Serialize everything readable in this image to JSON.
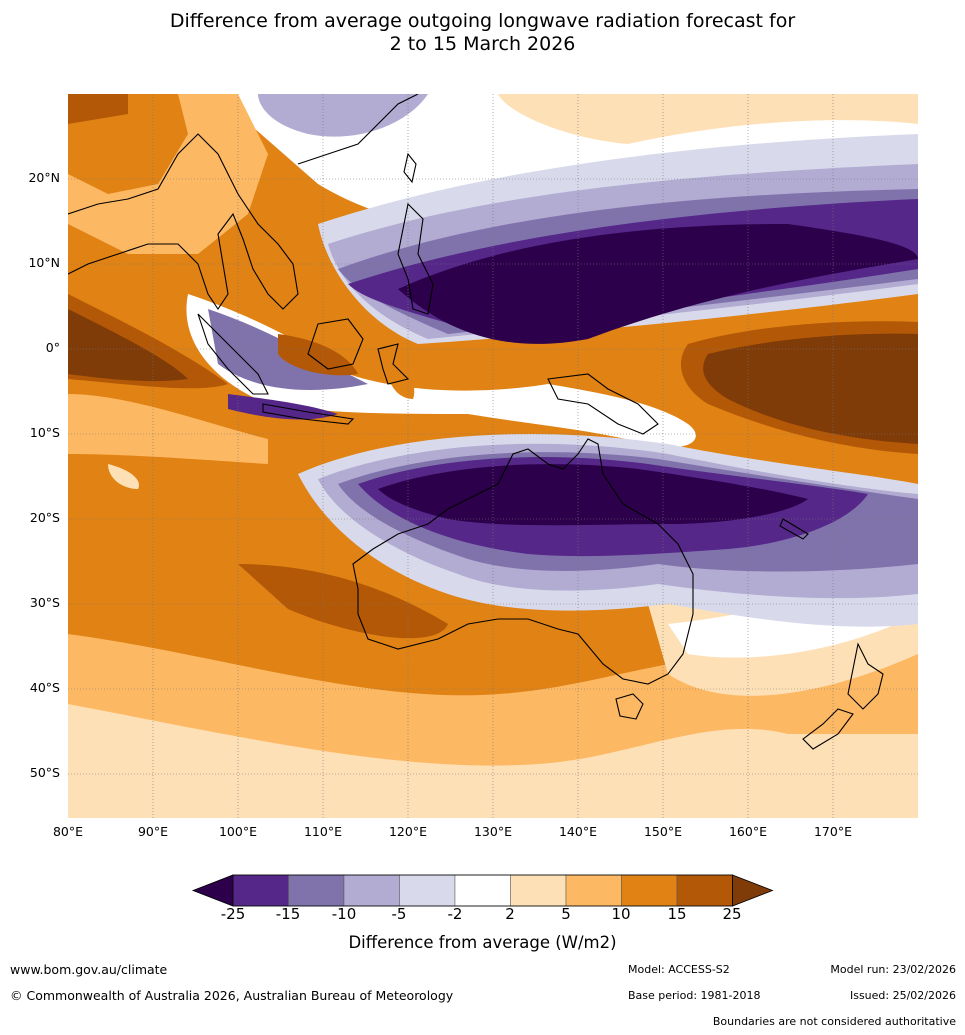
{
  "title": {
    "line1": "Difference from average outgoing longwave radiation forecast for",
    "line2": "2 to 15 March 2026"
  },
  "map": {
    "lon_ticks": [
      "80°E",
      "90°E",
      "100°E",
      "110°E",
      "120°E",
      "130°E",
      "140°E",
      "150°E",
      "160°E",
      "170°E"
    ],
    "lat_ticks": [
      "20°N",
      "10°N",
      "0°",
      "10°S",
      "20°S",
      "30°S",
      "40°S",
      "50°S"
    ],
    "extent": {
      "lon_min": 80,
      "lon_max": 180,
      "lat_min": -55,
      "lat_max": 30
    }
  },
  "colorbar": {
    "title": "Difference from average (W/m2)",
    "labels": [
      "-25",
      "-15",
      "-10",
      "-5",
      "-2",
      "2",
      "5",
      "10",
      "15",
      "25"
    ],
    "colors": [
      "#2d004b",
      "#542788",
      "#8073ac",
      "#b2abd2",
      "#d8daeb",
      "#ffffff",
      "#fee0b6",
      "#fdb863",
      "#e08214",
      "#b35806",
      "#7f3b08"
    ]
  },
  "footer": {
    "website": "www.bom.gov.au/climate",
    "copyright": "© Commonwealth of Australia 2026, Australian Bureau of Meteorology",
    "model": "Model: ACCESS-S2",
    "base_period": "Base period: 1981-2018",
    "model_run": "Model run: 23/02/2026",
    "issued": "Issued: 25/02/2026",
    "disclaimer": "Boundaries are not considered authoritative"
  }
}
